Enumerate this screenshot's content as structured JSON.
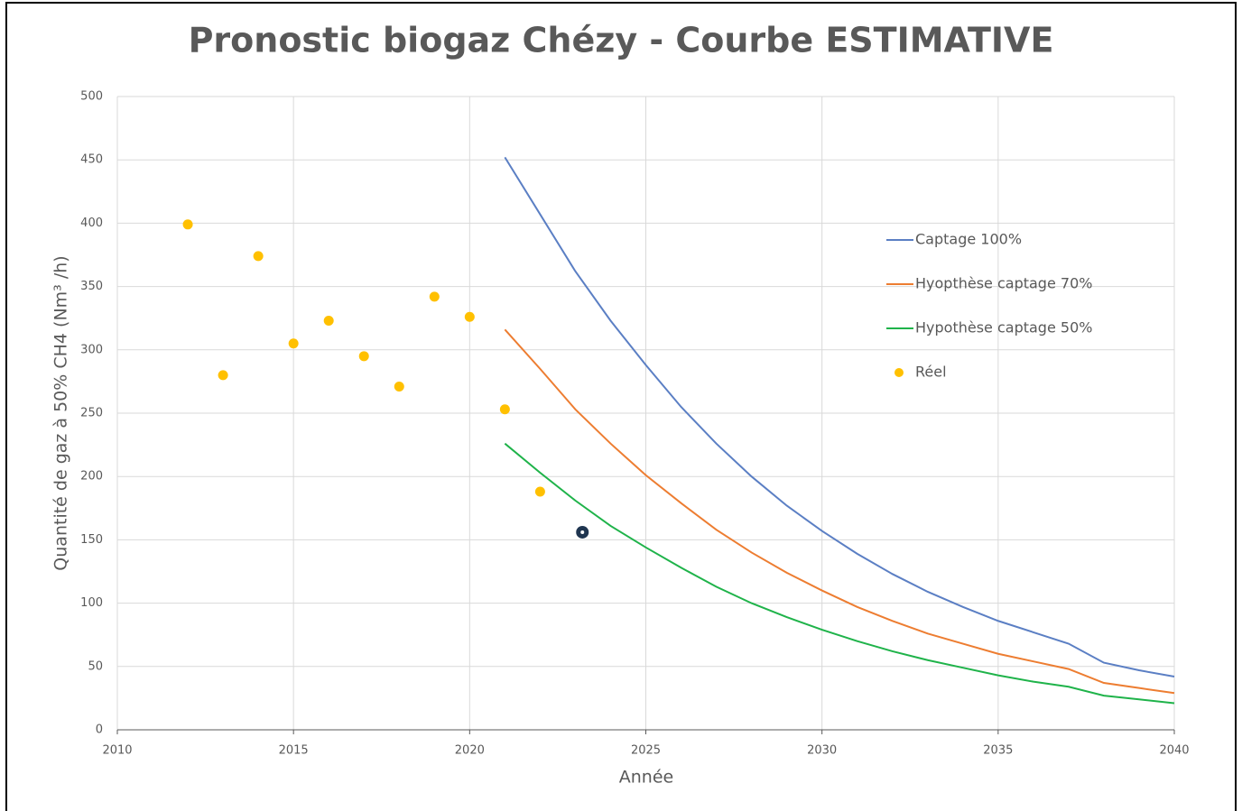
{
  "chart_data": {
    "type": "line",
    "title": "Pronostic biogaz Chézy - Courbe ESTIMATIVE",
    "x_label": "Année",
    "y_label": "Quantité de gaz à 50% CH4 (Nm³ /h)",
    "xlim": [
      2010,
      2040
    ],
    "xticks": [
      2010,
      2015,
      2020,
      2025,
      2030,
      2035,
      2040
    ],
    "ylim": [
      0,
      500
    ],
    "yticks": [
      0,
      50,
      100,
      150,
      200,
      250,
      300,
      350,
      400,
      450,
      500
    ],
    "grid": true,
    "legend": "right",
    "series": [
      {
        "name": "Captage 100%",
        "color": "#5b7fc4",
        "mode": "line",
        "x": [
          2021,
          2022,
          2023,
          2024,
          2025,
          2026,
          2027,
          2028,
          2029,
          2030,
          2031,
          2032,
          2033,
          2034,
          2035,
          2036,
          2037,
          2038,
          2039,
          2040
        ],
        "values": [
          452,
          407,
          362,
          323,
          288,
          255,
          226,
          200,
          177,
          157,
          139,
          123,
          109,
          97,
          86,
          77,
          68,
          53,
          47,
          42
        ]
      },
      {
        "name": "Hyopthèse captage 70%",
        "color": "#ed7d31",
        "mode": "line",
        "x": [
          2021,
          2022,
          2023,
          2024,
          2025,
          2026,
          2027,
          2028,
          2029,
          2030,
          2031,
          2032,
          2033,
          2034,
          2035,
          2036,
          2037,
          2038,
          2039,
          2040
        ],
        "values": [
          316,
          285,
          253,
          226,
          201,
          179,
          158,
          140,
          124,
          110,
          97,
          86,
          76,
          68,
          60,
          54,
          48,
          37,
          33,
          29
        ]
      },
      {
        "name": "Hypothèse captage 50%",
        "color": "#1fb34a",
        "mode": "line",
        "x": [
          2021,
          2022,
          2023,
          2024,
          2025,
          2026,
          2027,
          2028,
          2029,
          2030,
          2031,
          2032,
          2033,
          2034,
          2035,
          2036,
          2037,
          2038,
          2039,
          2040
        ],
        "values": [
          226,
          203,
          181,
          161,
          144,
          128,
          113,
          100,
          89,
          79,
          70,
          62,
          55,
          49,
          43,
          38,
          34,
          27,
          24,
          21
        ]
      },
      {
        "name": "Réel",
        "color": "#ffc000",
        "mode": "markers",
        "x": [
          2012,
          2013,
          2014,
          2015,
          2016,
          2017,
          2018,
          2019,
          2020,
          2021,
          2022
        ],
        "values": [
          399,
          280,
          374,
          305,
          323,
          295,
          271,
          342,
          326,
          253,
          188
        ]
      }
    ],
    "marker": {
      "x": 2023.2,
      "y": 156,
      "color": "#1f3550"
    }
  }
}
